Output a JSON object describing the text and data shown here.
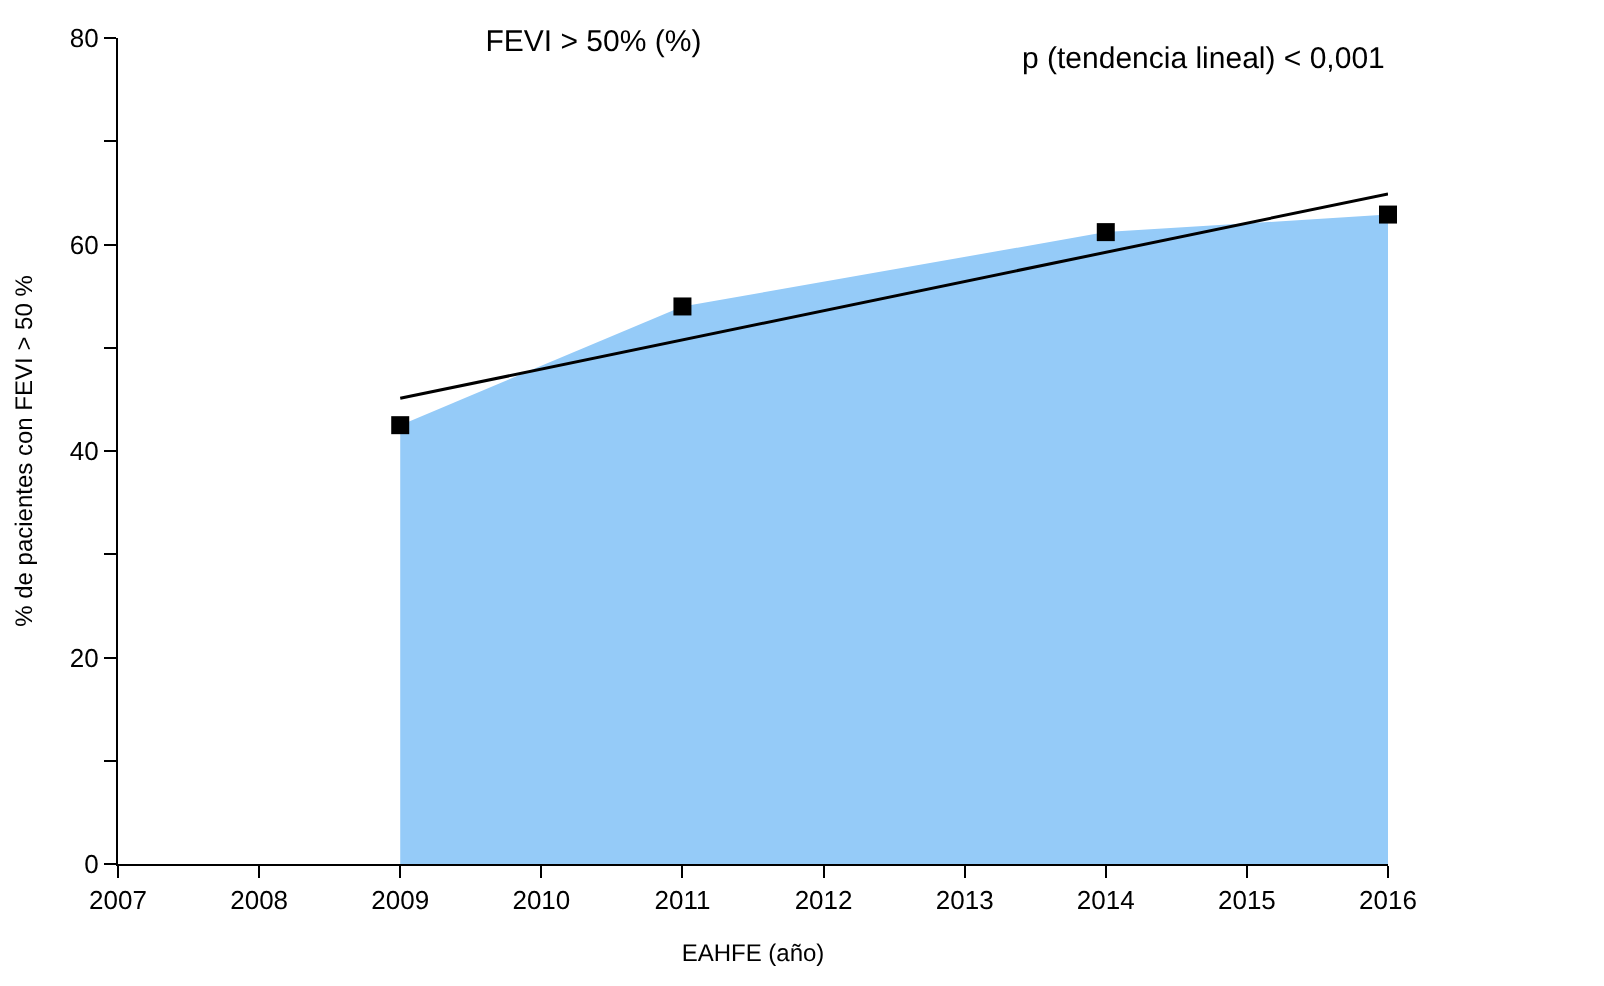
{
  "chart_data": {
    "type": "area",
    "title": "FEVI > 50% (%)",
    "xlabel": "EAHFE (año)",
    "ylabel": "% de pacientes con FEVI > 50 %",
    "annotations": [
      "p (tendencia lineal) < 0,001"
    ],
    "x": [
      2009,
      2011,
      2014,
      2016
    ],
    "series": [
      {
        "color": "#95cbf8",
        "values": [
          42.5,
          54.0,
          61.2,
          62.9
        ],
        "marker": "none"
      },
      {
        "type": "scatter",
        "color": "#000000",
        "values": [
          42.5,
          54.0,
          61.2,
          62.9
        ],
        "marker": "square"
      },
      {
        "type": "line",
        "color": "#000000",
        "x": [
          2009,
          2016
        ],
        "values": [
          45.1,
          64.9
        ],
        "marker": "none",
        "line_style": "solid"
      }
    ],
    "xlim": [
      2007,
      2016
    ],
    "xticks": [
      2007,
      2008,
      2009,
      2010,
      2011,
      2012,
      2013,
      2014,
      2015,
      2016
    ],
    "ylim": [
      0,
      80
    ],
    "yticks": [
      0,
      {
        "value": 10,
        "label": null
      },
      20,
      {
        "value": 30,
        "label": null
      },
      40,
      {
        "value": 50,
        "label": null
      },
      60,
      {
        "value": 70,
        "label": null
      },
      80
    ]
  }
}
